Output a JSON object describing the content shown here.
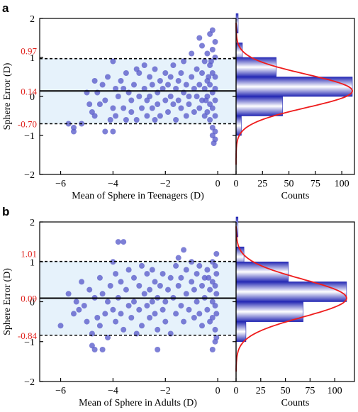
{
  "colors": {
    "point": "#5a5ccb",
    "band": "#e6f2fb",
    "curve": "#ee1c1c",
    "bar_edge": "#2428b4",
    "bar_mid": "#ffffff",
    "red_text": "#e0201b"
  },
  "panels": [
    {
      "letter": "a",
      "ylabel": "Sphere Error (D)",
      "xlabel": "Mean of Sphere in Teenagers (D)",
      "hist_xlabel": "Counts",
      "chart_data": {
        "type": "scatter",
        "xlim": [
          -6.8,
          0.7
        ],
        "ylim": [
          -2,
          2
        ],
        "x_ticks": [
          -6,
          -4,
          -2,
          0
        ],
        "y_ticks": [
          -2,
          -1,
          0,
          1,
          2
        ],
        "mean_line": 0.14,
        "upper_loa": 0.97,
        "lower_loa": -0.7,
        "mean_label": "0.14",
        "upper_label": "0.97",
        "lower_label": "-0.70",
        "points": [
          [
            -5.7,
            -0.7
          ],
          [
            -5.5,
            -0.8
          ],
          [
            -5.5,
            -0.9
          ],
          [
            -5.2,
            -0.7
          ],
          [
            -5.0,
            0.1
          ],
          [
            -4.9,
            -0.2
          ],
          [
            -4.8,
            -0.4
          ],
          [
            -4.7,
            0.4
          ],
          [
            -4.7,
            -0.5
          ],
          [
            -4.6,
            0.1
          ],
          [
            -4.5,
            -0.2
          ],
          [
            -4.4,
            0.3
          ],
          [
            -4.3,
            -0.1
          ],
          [
            -4.3,
            -0.9
          ],
          [
            -4.2,
            0.5
          ],
          [
            -4.1,
            -0.6
          ],
          [
            -4.0,
            -0.3
          ],
          [
            -4.0,
            0.9
          ],
          [
            -4.0,
            -0.9
          ],
          [
            -3.9,
            0.2
          ],
          [
            -3.9,
            -0.5
          ],
          [
            -3.8,
            0.0
          ],
          [
            -3.7,
            0.4
          ],
          [
            -3.6,
            -0.3
          ],
          [
            -3.6,
            0.2
          ],
          [
            -3.5,
            0.6
          ],
          [
            -3.5,
            -0.6
          ],
          [
            -3.4,
            0.1
          ],
          [
            -3.3,
            -0.1
          ],
          [
            -3.3,
            -0.4
          ],
          [
            -3.2,
            0.3
          ],
          [
            -3.1,
            0.7
          ],
          [
            -3.1,
            -0.6
          ],
          [
            -3.0,
            0.0
          ],
          [
            -3.0,
            0.6
          ],
          [
            -2.9,
            -0.3
          ],
          [
            -2.8,
            0.2
          ],
          [
            -2.8,
            0.8
          ],
          [
            -2.7,
            -0.1
          ],
          [
            -2.7,
            -0.5
          ],
          [
            -2.6,
            0.5
          ],
          [
            -2.6,
            0.0
          ],
          [
            -2.5,
            0.3
          ],
          [
            -2.5,
            -0.3
          ],
          [
            -2.4,
            0.7
          ],
          [
            -2.4,
            -0.6
          ],
          [
            -2.3,
            0.1
          ],
          [
            -2.3,
            -0.2
          ],
          [
            -2.2,
            0.4
          ],
          [
            -2.2,
            -0.5
          ],
          [
            -2.1,
            0.2
          ],
          [
            -2.0,
            -0.1
          ],
          [
            -2.0,
            0.6
          ],
          [
            -1.9,
            0.3
          ],
          [
            -1.9,
            -0.4
          ],
          [
            -1.8,
            0.0
          ],
          [
            -1.8,
            0.5
          ],
          [
            -1.7,
            -0.2
          ],
          [
            -1.7,
            0.8
          ],
          [
            -1.6,
            0.2
          ],
          [
            -1.6,
            -0.6
          ],
          [
            -1.5,
            0.4
          ],
          [
            -1.5,
            -0.1
          ],
          [
            -1.4,
            0.6
          ],
          [
            -1.4,
            -0.3
          ],
          [
            -1.3,
            0.1
          ],
          [
            -1.3,
            0.9
          ],
          [
            -1.2,
            -0.5
          ],
          [
            -1.2,
            0.3
          ],
          [
            -1.1,
            0.0
          ],
          [
            -1.1,
            -0.2
          ],
          [
            -1.0,
            0.5
          ],
          [
            -1.0,
            1.1
          ],
          [
            -0.9,
            0.2
          ],
          [
            -0.9,
            -0.4
          ],
          [
            -0.8,
            0.7
          ],
          [
            -0.8,
            0.0
          ],
          [
            -0.7,
            1.5
          ],
          [
            -0.7,
            0.3
          ],
          [
            -0.7,
            -0.3
          ],
          [
            -0.6,
            0.6
          ],
          [
            -0.6,
            1.3
          ],
          [
            -0.6,
            -0.1
          ],
          [
            -0.5,
            0.9
          ],
          [
            -0.5,
            0.2
          ],
          [
            -0.5,
            -0.5
          ],
          [
            -0.4,
            1.1
          ],
          [
            -0.4,
            0.4
          ],
          [
            -0.4,
            0.0
          ],
          [
            -0.4,
            -0.4
          ],
          [
            -0.3,
            1.6
          ],
          [
            -0.3,
            0.8
          ],
          [
            -0.3,
            0.3
          ],
          [
            -0.3,
            -0.2
          ],
          [
            -0.3,
            -0.6
          ],
          [
            -0.2,
            1.7
          ],
          [
            -0.2,
            1.2
          ],
          [
            -0.2,
            0.6
          ],
          [
            -0.2,
            0.1
          ],
          [
            -0.2,
            -0.3
          ],
          [
            -0.2,
            -0.8
          ],
          [
            -0.2,
            -1.0
          ],
          [
            -0.1,
            1.4
          ],
          [
            -0.1,
            1.0
          ],
          [
            -0.1,
            0.5
          ],
          [
            -0.1,
            0.2
          ],
          [
            -0.1,
            -0.1
          ],
          [
            -0.1,
            -0.5
          ],
          [
            -0.1,
            -0.9
          ],
          [
            -0.1,
            -1.1
          ],
          [
            -0.15,
            -1.2
          ],
          [
            -0.25,
            0.9
          ],
          [
            -0.35,
            0.5
          ],
          [
            -0.45,
            -0.1
          ]
        ],
        "hist": {
          "xlim": [
            0,
            112
          ],
          "x_ticks": [
            0,
            25,
            50,
            75,
            100
          ],
          "bins": [
            {
              "center": 1.875,
              "count": 2
            },
            {
              "center": 1.125,
              "count": 6
            },
            {
              "center": 0.75,
              "count": 38
            },
            {
              "center": 0.25,
              "count": 110
            },
            {
              "center": -0.25,
              "count": 44
            },
            {
              "center": -0.75,
              "count": 5
            }
          ]
        }
      }
    },
    {
      "letter": "b",
      "ylabel": "Sphere Error (D)",
      "xlabel": "Mean of Sphere in Adults (D)",
      "hist_xlabel": "Counts",
      "chart_data": {
        "type": "scatter",
        "xlim": [
          -6.8,
          0.7
        ],
        "ylim": [
          -2,
          2
        ],
        "x_ticks": [
          -6,
          -4,
          -2,
          0
        ],
        "y_ticks": [
          -2,
          -1,
          0,
          1,
          2
        ],
        "mean_line": 0.09,
        "upper_loa": 1.01,
        "lower_loa": -0.84,
        "mean_label": "0.09",
        "upper_label": "1.01",
        "lower_label": "-0.84",
        "points": [
          [
            -6.0,
            -0.6
          ],
          [
            -5.7,
            0.2
          ],
          [
            -5.5,
            -0.3
          ],
          [
            -5.4,
            0.0
          ],
          [
            -5.3,
            -0.2
          ],
          [
            -5.2,
            0.5
          ],
          [
            -5.1,
            -0.1
          ],
          [
            -5.0,
            -0.5
          ],
          [
            -4.9,
            0.3
          ],
          [
            -4.8,
            -0.8
          ],
          [
            -4.8,
            -1.1
          ],
          [
            -4.7,
            0.1
          ],
          [
            -4.7,
            -1.2
          ],
          [
            -4.6,
            -0.4
          ],
          [
            -4.5,
            0.6
          ],
          [
            -4.5,
            -0.6
          ],
          [
            -4.4,
            0.2
          ],
          [
            -4.3,
            -0.3
          ],
          [
            -4.2,
            0.0
          ],
          [
            -4.2,
            -0.9
          ],
          [
            -4.1,
            0.4
          ],
          [
            -4.0,
            -0.2
          ],
          [
            -4.0,
            1.0
          ],
          [
            -3.9,
            0.7
          ],
          [
            -3.9,
            -0.5
          ],
          [
            -3.8,
            0.1
          ],
          [
            -3.8,
            1.5
          ],
          [
            -3.7,
            -0.3
          ],
          [
            -3.7,
            0.5
          ],
          [
            -3.6,
            1.5
          ],
          [
            -3.6,
            -0.7
          ],
          [
            -3.5,
            0.3
          ],
          [
            -3.4,
            -0.1
          ],
          [
            -3.4,
            0.8
          ],
          [
            -3.3,
            -0.4
          ],
          [
            -3.2,
            0.6
          ],
          [
            -3.2,
            0.0
          ],
          [
            -3.1,
            -0.8
          ],
          [
            -3.0,
            0.4
          ],
          [
            -3.0,
            -0.2
          ],
          [
            -2.9,
            0.9
          ],
          [
            -2.9,
            -0.6
          ],
          [
            -2.8,
            0.2
          ],
          [
            -2.7,
            -0.1
          ],
          [
            -2.7,
            0.7
          ],
          [
            -2.6,
            -0.4
          ],
          [
            -2.6,
            0.3
          ],
          [
            -2.5,
            0.0
          ],
          [
            -2.5,
            0.8
          ],
          [
            -2.4,
            -0.3
          ],
          [
            -2.4,
            0.5
          ],
          [
            -2.3,
            -0.7
          ],
          [
            -2.3,
            0.1
          ],
          [
            -2.2,
            0.4
          ],
          [
            -2.1,
            -0.2
          ],
          [
            -2.1,
            0.7
          ],
          [
            -2.0,
            0.0
          ],
          [
            -2.0,
            -0.5
          ],
          [
            -1.9,
            0.3
          ],
          [
            -1.8,
            -0.8
          ],
          [
            -1.8,
            0.6
          ],
          [
            -1.7,
            0.1
          ],
          [
            -1.6,
            -0.3
          ],
          [
            -1.6,
            0.9
          ],
          [
            -1.5,
            0.4
          ],
          [
            -1.5,
            1.1
          ],
          [
            -1.4,
            -0.1
          ],
          [
            -1.4,
            0.6
          ],
          [
            -1.3,
            1.3
          ],
          [
            -1.3,
            -0.5
          ],
          [
            -1.2,
            0.2
          ],
          [
            -1.2,
            0.8
          ],
          [
            -1.1,
            -0.2
          ],
          [
            -1.0,
            0.5
          ],
          [
            -1.0,
            1.0
          ],
          [
            -0.9,
            -0.4
          ],
          [
            -0.9,
            0.3
          ],
          [
            -0.8,
            0.7
          ],
          [
            -0.8,
            0.0
          ],
          [
            -0.7,
            -0.3
          ],
          [
            -0.7,
            0.9
          ],
          [
            -0.6,
            0.4
          ],
          [
            -0.6,
            -0.6
          ],
          [
            -0.5,
            0.1
          ],
          [
            -0.5,
            0.6
          ],
          [
            -0.4,
            -0.2
          ],
          [
            -0.4,
            0.8
          ],
          [
            -0.3,
            0.3
          ],
          [
            -0.3,
            -0.5
          ],
          [
            -0.2,
            1.0
          ],
          [
            -0.2,
            0.5
          ],
          [
            -0.2,
            0.0
          ],
          [
            -0.2,
            -0.4
          ],
          [
            -0.1,
            0.9
          ],
          [
            -0.1,
            0.4
          ],
          [
            -0.1,
            -0.1
          ],
          [
            -0.1,
            -0.7
          ],
          [
            -0.1,
            -1.0
          ],
          [
            -0.05,
            1.2
          ],
          [
            -0.05,
            0.7
          ],
          [
            -0.05,
            0.2
          ],
          [
            -0.05,
            -0.3
          ],
          [
            -0.05,
            -0.9
          ],
          [
            -0.2,
            -1.2
          ],
          [
            -0.35,
            0.6
          ],
          [
            -2.3,
            -1.2
          ],
          [
            -4.4,
            -1.2
          ]
        ],
        "hist": {
          "xlim": [
            0,
            120
          ],
          "x_ticks": [
            0,
            25,
            50,
            75,
            100
          ],
          "bins": [
            {
              "center": 1.875,
              "count": 2
            },
            {
              "center": 1.125,
              "count": 8
            },
            {
              "center": 0.75,
              "count": 53
            },
            {
              "center": 0.25,
              "count": 112
            },
            {
              "center": -0.25,
              "count": 68
            },
            {
              "center": -0.75,
              "count": 10
            }
          ]
        }
      }
    }
  ]
}
